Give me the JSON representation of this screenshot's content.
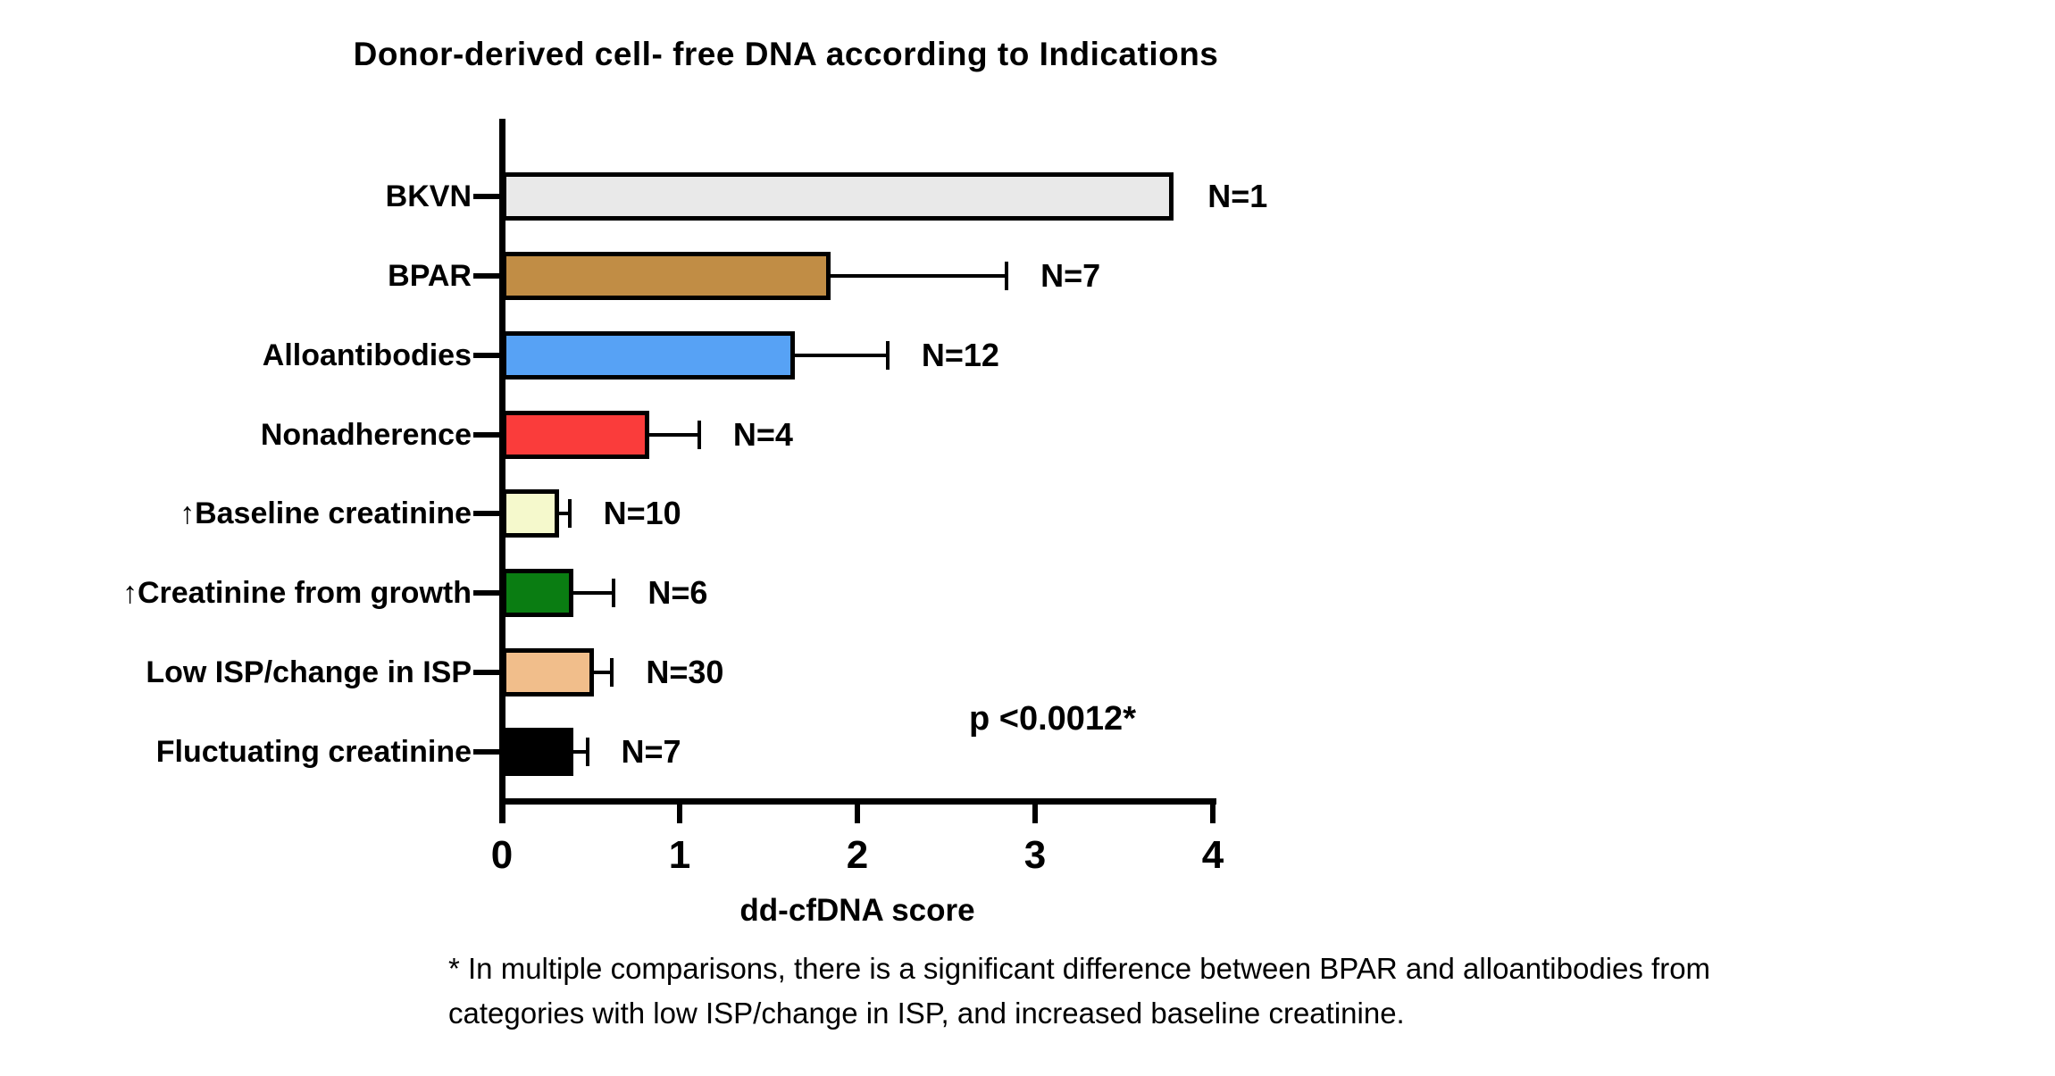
{
  "annotations": {
    "p_value": "p <0.0012*"
  },
  "footnote_lines": [
    "* In multiple comparisons, there is a significant difference  between BPAR and alloantibodies from",
    "categories with low ISP/change in ISP, and increased baseline creatinine."
  ],
  "chart_data": {
    "type": "bar",
    "orientation": "horizontal",
    "title": "Donor-derived cell- free DNA according to Indications",
    "xlabel": "dd-cfDNA score",
    "xlim": [
      0,
      4
    ],
    "xticks": [
      "0",
      "1",
      "2",
      "3",
      "4"
    ],
    "grid": false,
    "legend": false,
    "categories": [
      "BKVN",
      "BPAR",
      "Alloantibodies",
      "Nonadherence",
      "↑Baseline creatinine",
      "↑Creatinine from growth",
      "Low ISP/change in ISP",
      "Fluctuating creatinine"
    ],
    "values": [
      3.78,
      1.85,
      1.65,
      0.83,
      0.32,
      0.4,
      0.52,
      0.4
    ],
    "error_high": [
      null,
      2.84,
      2.17,
      1.11,
      0.38,
      0.63,
      0.62,
      0.48
    ],
    "n_labels": [
      "N=1",
      "N=7",
      "N=12",
      "N=4",
      "N=10",
      "N=6",
      "N=30",
      "N=7"
    ],
    "bar_colors": [
      "#E9E9E9",
      "#C18D45",
      "#57A2F5",
      "#FA3C3B",
      "#F5F9CC",
      "#0A7D12",
      "#F1BE8B",
      "#000000"
    ],
    "bar_border_color": "#000000",
    "axis_color": "#000000"
  }
}
